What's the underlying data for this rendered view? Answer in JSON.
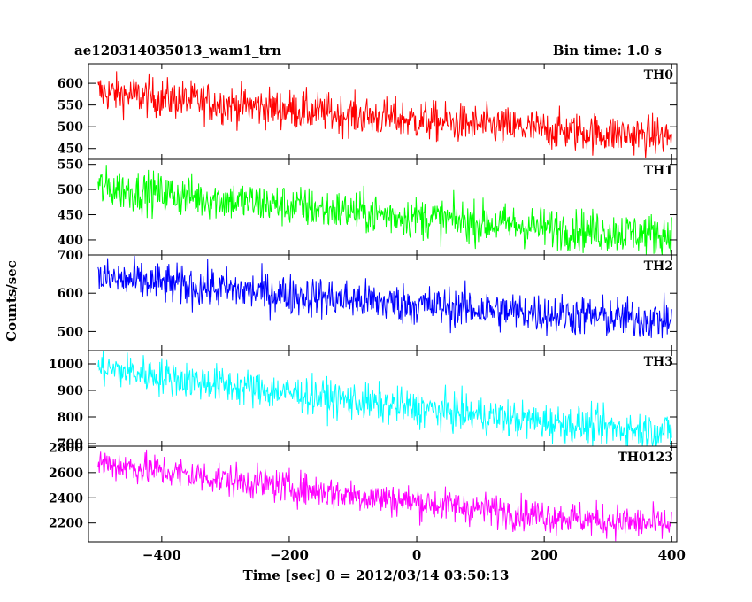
{
  "header": {
    "title": "ae120314035013_wam1_trn",
    "bin_time": "Bin time: 1.0 s"
  },
  "chart_data": {
    "type": "line",
    "xlabel": "Time [sec] 0 = 2012/03/14 03:50:13",
    "ylabel": "Counts/sec",
    "xlim": [
      -515,
      408
    ],
    "x_ticks": [
      -400,
      -200,
      0,
      200,
      400
    ],
    "x_tick_labels": [
      "−400",
      "−200",
      "0",
      "200",
      "400"
    ],
    "x_range": [
      -500,
      400
    ],
    "panels": [
      {
        "name": "TH0",
        "color": "#ff0000",
        "ylim": [
          425,
          645
        ],
        "yticks": [
          450,
          500,
          550,
          600
        ],
        "ytick_labels": [
          "450",
          "500",
          "550",
          "600"
        ],
        "trend_start": 580,
        "trend_end": 478,
        "noise": 55
      },
      {
        "name": "TH1",
        "color": "#00ff00",
        "ylim": [
          370,
          560
        ],
        "yticks": [
          400,
          450,
          500,
          550
        ],
        "ytick_labels": [
          "400",
          "450",
          "500",
          "550"
        ],
        "trend_start": 505,
        "trend_end": 410,
        "noise": 50
      },
      {
        "name": "TH2",
        "color": "#0000ff",
        "ylim": [
          450,
          700
        ],
        "yticks": [
          500,
          600,
          700
        ],
        "ytick_labels": [
          "500",
          "600",
          "700"
        ],
        "trend_start": 640,
        "trend_end": 530,
        "noise": 65
      },
      {
        "name": "TH3",
        "color": "#00ffff",
        "ylim": [
          690,
          1050
        ],
        "yticks": [
          700,
          800,
          900,
          1000
        ],
        "ytick_labels": [
          "700",
          "800",
          "900",
          "1000"
        ],
        "trend_start": 985,
        "trend_end": 745,
        "noise": 85
      },
      {
        "name": "TH0123",
        "color": "#ff00ff",
        "ylim": [
          2050,
          2810
        ],
        "yticks": [
          2200,
          2400,
          2600,
          2800
        ],
        "ytick_labels": [
          "2200",
          "2400",
          "2600",
          "2800"
        ],
        "trend_start": 2680,
        "trend_end": 2185,
        "noise": 160
      }
    ]
  }
}
